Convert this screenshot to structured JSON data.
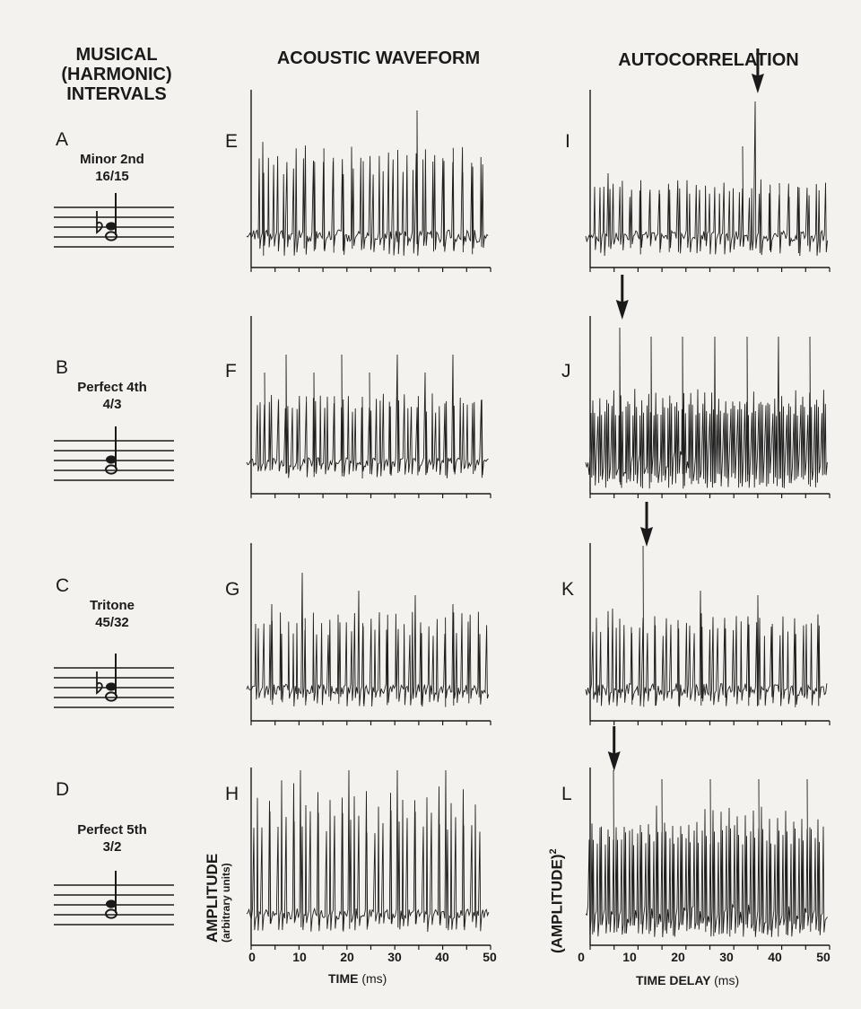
{
  "headers": {
    "intervals": [
      "MUSICAL",
      "(HARMONIC)",
      "INTERVALS"
    ],
    "waveform": "ACOUSTIC WAVEFORM",
    "autocorrelation": "AUTOCORRELATION"
  },
  "intervals": [
    {
      "label": "A",
      "name": "Minor  2nd",
      "ratio": "16/15",
      "flat": true
    },
    {
      "label": "B",
      "name": "Perfect  4th",
      "ratio": "4/3",
      "flat": false
    },
    {
      "label": "C",
      "name": "Tritone",
      "ratio": "45/32",
      "flat": true
    },
    {
      "label": "D",
      "name": "Perfect  5th",
      "ratio": "3/2",
      "flat": false
    }
  ],
  "chart_data": [
    {
      "type": "line",
      "panel": "E",
      "column": "waveform",
      "interval": "Minor 2nd 16/15",
      "xlim": [
        0,
        50
      ]
    },
    {
      "type": "line",
      "panel": "F",
      "column": "waveform",
      "interval": "Perfect 4th 4/3",
      "xlim": [
        0,
        50
      ]
    },
    {
      "type": "line",
      "panel": "G",
      "column": "waveform",
      "interval": "Tritone 45/32",
      "xlim": [
        0,
        50
      ]
    },
    {
      "type": "line",
      "panel": "H",
      "column": "waveform",
      "interval": "Perfect 5th 3/2",
      "xlim": [
        0,
        50
      ],
      "xticks": [
        0,
        10,
        20,
        30,
        40,
        50
      ],
      "xlabel": "TIME",
      "xunit": "(ms)",
      "ylabel": "AMPLITUDE",
      "yunit": "(arbitrary units)"
    },
    {
      "type": "line",
      "panel": "I",
      "column": "autocorrelation",
      "interval": "Minor 2nd 16/15",
      "xlim": [
        0,
        50
      ],
      "arrow_at": 35
    },
    {
      "type": "line",
      "panel": "J",
      "column": "autocorrelation",
      "interval": "Perfect 4th 4/3",
      "xlim": [
        0,
        50
      ],
      "arrow_at": 6.7
    },
    {
      "type": "line",
      "panel": "K",
      "column": "autocorrelation",
      "interval": "Tritone 45/32",
      "xlim": [
        0,
        50
      ],
      "arrow_at": 11.8
    },
    {
      "type": "line",
      "panel": "L",
      "column": "autocorrelation",
      "interval": "Perfect 5th 3/2",
      "xlim": [
        0,
        50
      ],
      "arrow_at": 5,
      "xticks": [
        0,
        10,
        20,
        30,
        40,
        50
      ],
      "xlabel": "TIME DELAY",
      "xunit": "(ms)",
      "ylabel": "(AMPLITUDE)",
      "ylabel_sup": "2"
    }
  ]
}
